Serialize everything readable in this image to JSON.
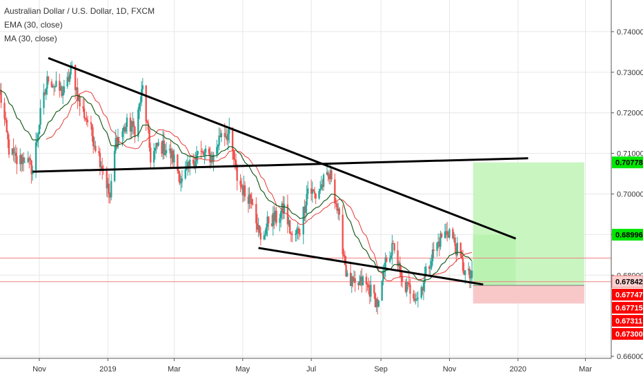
{
  "legend": {
    "symbol": "Australian Dollar / U.S. Dollar, 1D, FXCM",
    "ema": "EMA (30, close)",
    "ma": "MA (30, close)"
  },
  "colors": {
    "up": "#26a69a",
    "down": "#ef5350",
    "ema": "#1b5e20",
    "ma": "#e53935",
    "trend": "#000000",
    "target_zone": "#c8f5c0",
    "stop_zone": "#f8c8c8",
    "tag_green": "#00e600",
    "tag_red": "#ff0000",
    "axis": "#555555",
    "grid": "#e6e6e6"
  },
  "chart_data": {
    "type": "candlestick",
    "symbol": "Australian Dollar / U.S. Dollar, 1D, FXCM",
    "indicators": [
      "EMA (30, close)",
      "MA (30, close)"
    ],
    "x_tick_labels": [
      "Nov",
      "2019",
      "Mar",
      "May",
      "Jul",
      "Sep",
      "Nov",
      "2020",
      "Mar"
    ],
    "x_ticks": [
      "2018-11-01",
      "2019-01-01",
      "2019-03-01",
      "2019-05-01",
      "2019-07-01",
      "2019-09-01",
      "2019-11-01",
      "2020-01-01",
      "2020-03-01"
    ],
    "y_tick_labels": [
      "0.74000",
      "0.73000",
      "0.72000",
      "0.71000",
      "0.70000",
      "0.69000",
      "0.68000",
      "0.66000"
    ],
    "y_ticks": [
      0.74,
      0.73,
      0.72,
      0.71,
      0.7,
      0.69,
      0.68,
      0.66
    ],
    "ylim": [
      0.6595,
      0.7478
    ],
    "xlim": [
      "2018-09-27",
      "2020-03-24"
    ],
    "price_tags": [
      {
        "label": "0.70778",
        "value": 0.70778,
        "color": "green"
      },
      {
        "label": "0.68996",
        "value": 0.68996,
        "color": "green"
      },
      {
        "label": "0.67842",
        "value": 0.67842,
        "color": "pink"
      },
      {
        "label": "0.67747",
        "value": 0.67747,
        "color": "red"
      },
      {
        "label": "0.67715",
        "value": 0.67715,
        "color": "red"
      },
      {
        "label": "0.67311",
        "value": 0.67311,
        "color": "red"
      },
      {
        "label": "0.67300",
        "value": 0.673,
        "color": "red"
      }
    ],
    "trendlines": [
      {
        "from": [
          "2018-11-09",
          0.7335
        ],
        "to": [
          "2019-12-30",
          0.689
        ]
      },
      {
        "from": [
          "2018-10-26",
          0.7055
        ],
        "to": [
          "2020-01-10",
          0.7088
        ]
      },
      {
        "from": [
          "2019-05-15",
          0.6867
        ],
        "to": [
          "2019-12-01",
          0.6777
        ]
      }
    ],
    "horizontal_lines": [
      0.6842,
      0.6784
    ],
    "position": {
      "entry": 0.67747,
      "target": 0.70778,
      "stop": 0.673,
      "start": "2019-11-22",
      "end": "2020-02-29",
      "partial_target": 0.68996,
      "partial_end": "2019-12-30"
    },
    "price_path": [
      [
        "2018-09-27",
        0.725
      ],
      [
        "2018-10-05",
        0.711
      ],
      [
        "2018-10-12",
        0.708
      ],
      [
        "2018-10-19",
        0.709
      ],
      [
        "2018-10-26",
        0.706
      ],
      [
        "2018-11-02",
        0.7195
      ],
      [
        "2018-11-09",
        0.729
      ],
      [
        "2018-11-16",
        0.726
      ],
      [
        "2018-11-23",
        0.725
      ],
      [
        "2018-11-30",
        0.731
      ],
      [
        "2018-12-07",
        0.722
      ],
      [
        "2018-12-14",
        0.718
      ],
      [
        "2018-12-21",
        0.712
      ],
      [
        "2018-12-28",
        0.706
      ],
      [
        "2019-01-03",
        0.699
      ],
      [
        "2019-01-08",
        0.713
      ],
      [
        "2019-01-18",
        0.717
      ],
      [
        "2019-01-25",
        0.716
      ],
      [
        "2019-02-01",
        0.726
      ],
      [
        "2019-02-08",
        0.709
      ],
      [
        "2019-02-15",
        0.712
      ],
      [
        "2019-02-22",
        0.711
      ],
      [
        "2019-03-01",
        0.7085
      ],
      [
        "2019-03-08",
        0.703
      ],
      [
        "2019-03-15",
        0.707
      ],
      [
        "2019-03-22",
        0.71
      ],
      [
        "2019-03-29",
        0.7095
      ],
      [
        "2019-04-05",
        0.709
      ],
      [
        "2019-04-12",
        0.7155
      ],
      [
        "2019-04-19",
        0.7145
      ],
      [
        "2019-04-26",
        0.704
      ],
      [
        "2019-05-03",
        0.7
      ],
      [
        "2019-05-10",
        0.699
      ],
      [
        "2019-05-17",
        0.688
      ],
      [
        "2019-05-24",
        0.6935
      ],
      [
        "2019-05-31",
        0.694
      ],
      [
        "2019-06-07",
        0.6965
      ],
      [
        "2019-06-14",
        0.689
      ],
      [
        "2019-06-21",
        0.6915
      ],
      [
        "2019-06-28",
        0.7015
      ],
      [
        "2019-07-05",
        0.6995
      ],
      [
        "2019-07-12",
        0.703
      ],
      [
        "2019-07-19",
        0.7045
      ],
      [
        "2019-07-26",
        0.693
      ],
      [
        "2019-08-02",
        0.679
      ],
      [
        "2019-08-09",
        0.677
      ],
      [
        "2019-08-16",
        0.6785
      ],
      [
        "2019-08-23",
        0.676
      ],
      [
        "2019-08-30",
        0.6725
      ],
      [
        "2019-09-06",
        0.6845
      ],
      [
        "2019-09-13",
        0.687
      ],
      [
        "2019-09-20",
        0.6775
      ],
      [
        "2019-09-27",
        0.6765
      ],
      [
        "2019-10-04",
        0.6745
      ],
      [
        "2019-10-11",
        0.6805
      ],
      [
        "2019-10-18",
        0.686
      ],
      [
        "2019-10-25",
        0.6895
      ],
      [
        "2019-11-01",
        0.691
      ],
      [
        "2019-11-08",
        0.686
      ],
      [
        "2019-11-15",
        0.6805
      ],
      [
        "2019-11-22",
        0.679
      ]
    ]
  }
}
